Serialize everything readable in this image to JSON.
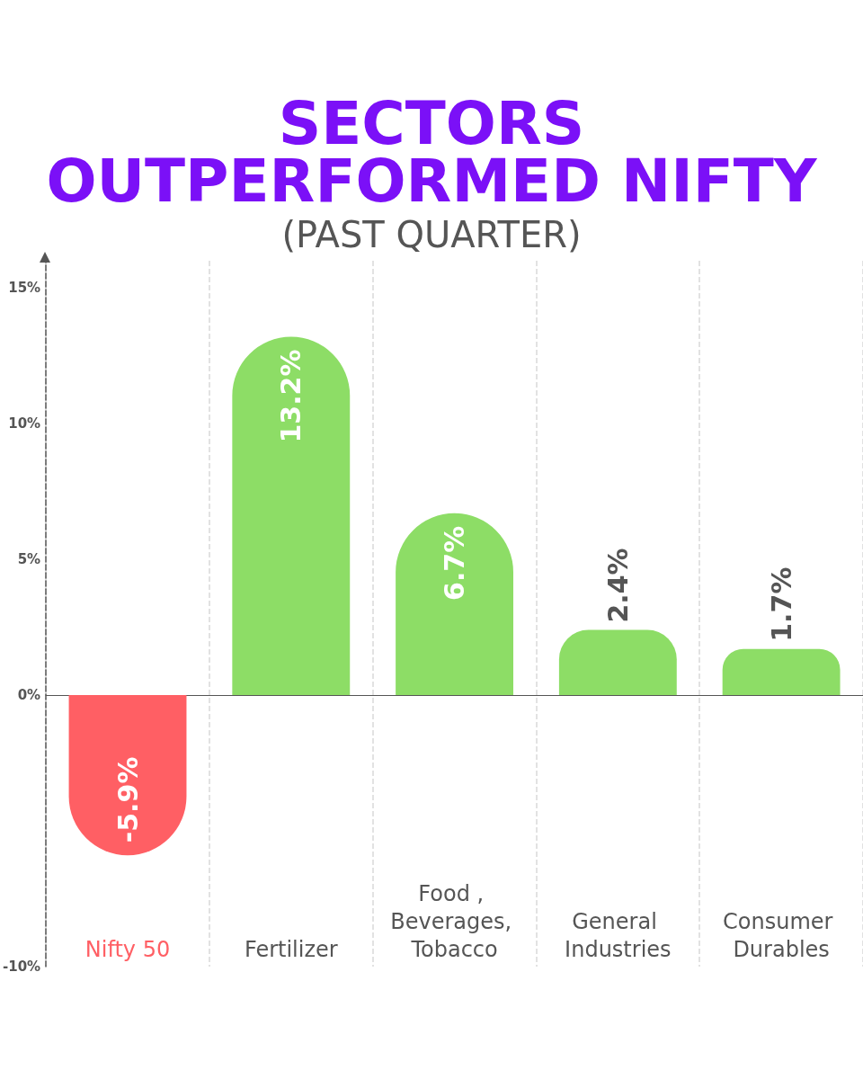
{
  "chart_data": {
    "type": "bar",
    "title": "SECTORS\nOUTPERFORMED NIFTY",
    "subtitle": "(PAST QUARTER)",
    "categories": [
      "Nifty 50",
      "Fertilizer",
      "Food , Beverages, Tobacco",
      "General Industries",
      "Consumer Durables"
    ],
    "values": [
      -5.9,
      13.2,
      6.7,
      2.4,
      1.7
    ],
    "colors": [
      "#ff5f64",
      "#8ddd66",
      "#8ddd66",
      "#8ddd66",
      "#8ddd66"
    ],
    "value_labels": [
      "-5.9%",
      "13.2%",
      "6.7%",
      "2.4%",
      "1.7%"
    ],
    "ylim": [
      -10,
      16
    ],
    "yticks": [
      {
        "value": -10,
        "label": "-10%"
      },
      {
        "value": 0,
        "label": "0%"
      },
      {
        "value": 5,
        "label": "5%"
      },
      {
        "value": 10,
        "label": "10%"
      },
      {
        "value": 15,
        "label": "15%"
      }
    ],
    "grid": "x"
  }
}
